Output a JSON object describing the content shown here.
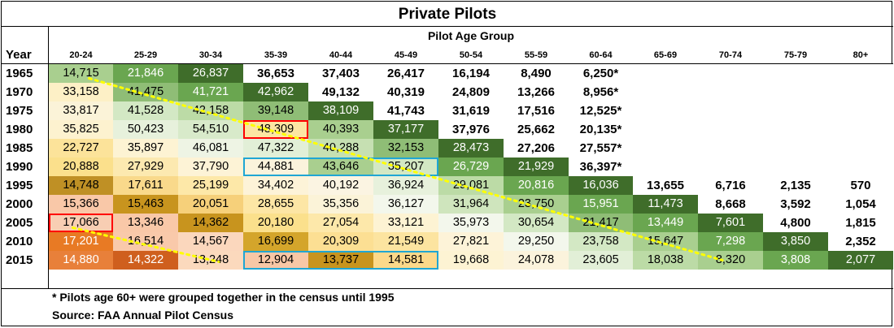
{
  "title": "Private Pilots",
  "group_label": "Pilot Age Group",
  "year_header": "Year",
  "footnotes": [
    "* Pilots age 60+ were grouped together in the census until 1995",
    "Source:  FAA Annual Pilot Census"
  ],
  "chart_data": {
    "type": "table",
    "title": "Private Pilots",
    "column_group_label": "Pilot Age Group",
    "row_header": "Year",
    "columns": [
      "20-24",
      "25-29",
      "30-34",
      "35-39",
      "40-44",
      "45-49",
      "50-54",
      "55-59",
      "60-64",
      "65-69",
      "70-74",
      "75-79",
      "80+"
    ],
    "rows": [
      {
        "year": "1965",
        "cells": [
          "14,715",
          "21,846",
          "26,837",
          "36,653",
          "37,403",
          "26,417",
          "16,194",
          "8,490",
          "6,250*",
          "",
          "",
          "",
          ""
        ],
        "fills": [
          "#a9cf8f",
          "#6aa650",
          "#3f6d2a",
          "#ffffff",
          "#ffffff",
          "#ffffff",
          "#ffffff",
          "#ffffff",
          "#ffffff",
          "#ffffff",
          "#ffffff",
          "#ffffff",
          "#ffffff"
        ]
      },
      {
        "year": "1970",
        "cells": [
          "33,158",
          "41,475",
          "41,721",
          "42,962",
          "49,132",
          "40,319",
          "24,809",
          "13,266",
          "8,956*",
          "",
          "",
          "",
          ""
        ],
        "fills": [
          "#fdf0c6",
          "#8fbd76",
          "#6aa650",
          "#3f6d2a",
          "#ffffff",
          "#ffffff",
          "#ffffff",
          "#ffffff",
          "#ffffff",
          "#ffffff",
          "#ffffff",
          "#ffffff",
          "#ffffff"
        ]
      },
      {
        "year": "1975",
        "cells": [
          "33,817",
          "41,528",
          "42,158",
          "39,148",
          "38,109",
          "41,743",
          "31,619",
          "17,516",
          "12,525*",
          "",
          "",
          "",
          ""
        ],
        "fills": [
          "#fbf3d8",
          "#d3e8c4",
          "#bcdba6",
          "#8fbd76",
          "#3f6d2a",
          "#ffffff",
          "#ffffff",
          "#ffffff",
          "#ffffff",
          "#ffffff",
          "#ffffff",
          "#ffffff",
          "#ffffff"
        ]
      },
      {
        "year": "1980",
        "cells": [
          "35,825",
          "50,423",
          "54,510",
          "48,309",
          "40,393",
          "37,177",
          "37,976",
          "25,662",
          "20,135*",
          "",
          "",
          "",
          ""
        ],
        "fills": [
          "#fdf2cf",
          "#e7f1dc",
          "#d8eaca",
          "#fce6a3",
          "#a9cf8f",
          "#3f6d2a",
          "#ffffff",
          "#ffffff",
          "#ffffff",
          "#ffffff",
          "#ffffff",
          "#ffffff",
          "#ffffff"
        ]
      },
      {
        "year": "1985",
        "cells": [
          "22,727",
          "35,897",
          "46,081",
          "47,322",
          "40,288",
          "32,153",
          "28,473",
          "27,206",
          "27,557*",
          "",
          "",
          "",
          ""
        ],
        "fills": [
          "#fce39a",
          "#fdf3d3",
          "#eef4e4",
          "#e2efd7",
          "#c6e0b2",
          "#8fbd76",
          "#3f6d2a",
          "#ffffff",
          "#ffffff",
          "#ffffff",
          "#ffffff",
          "#ffffff",
          "#ffffff"
        ]
      },
      {
        "year": "1990",
        "cells": [
          "20,888",
          "27,929",
          "37,790",
          "44,881",
          "43,646",
          "35,207",
          "26,729",
          "21,929",
          "36,397*",
          "",
          "",
          "",
          ""
        ],
        "fills": [
          "#fbe08c",
          "#fce9b0",
          "#fdf3d6",
          "#fbf3dc",
          "#a9cf8f",
          "#d3e8c4",
          "#6aa650",
          "#3f6d2a",
          "#ffffff",
          "#ffffff",
          "#ffffff",
          "#ffffff",
          "#ffffff"
        ]
      },
      {
        "year": "1995",
        "cells": [
          "14,748",
          "17,611",
          "25,199",
          "34,402",
          "40,192",
          "36,924",
          "29,081",
          "20,816",
          "16,036",
          "13,655",
          "6,716",
          "2,135",
          "570"
        ],
        "fills": [
          "#bf9025",
          "#f9d98b",
          "#fde8a8",
          "#fdf3d8",
          "#fbf4e2",
          "#e7f1dc",
          "#bcdba6",
          "#6aa650",
          "#3f6d2a",
          "#ffffff",
          "#ffffff",
          "#ffffff",
          "#ffffff"
        ]
      },
      {
        "year": "2000",
        "cells": [
          "15,366",
          "15,463",
          "20,051",
          "28,655",
          "35,356",
          "36,127",
          "31,964",
          "23,750",
          "15,951",
          "11,473",
          "8,668",
          "3,592",
          "1,054"
        ],
        "fills": [
          "#f9c8a8",
          "#c8941e",
          "#f6d07a",
          "#fde6a5",
          "#fbf3d8",
          "#f3f7ec",
          "#cfe5bd",
          "#a9cf8f",
          "#6aa650",
          "#3f6d2a",
          "#ffffff",
          "#ffffff",
          "#ffffff"
        ]
      },
      {
        "year": "2005",
        "cells": [
          "17,066",
          "13,346",
          "14,362",
          "20,180",
          "27,054",
          "33,121",
          "35,973",
          "30,654",
          "21,417",
          "13,449",
          "7,601",
          "4,800",
          "1,815"
        ],
        "fills": [
          "#f8ceb3",
          "#f9c8a8",
          "#c8941e",
          "#fbe08c",
          "#fde8aa",
          "#fdf3d3",
          "#f3f7ec",
          "#d3e8c4",
          "#8fbd76",
          "#6aa650",
          "#3f6d2a",
          "#ffffff",
          "#ffffff"
        ]
      },
      {
        "year": "2010",
        "cells": [
          "17,201",
          "16,514",
          "14,567",
          "16,699",
          "20,309",
          "21,549",
          "27,821",
          "29,250",
          "23,758",
          "15,647",
          "7,298",
          "3,850",
          "2,352"
        ],
        "fills": [
          "#e87a24",
          "#f9c9aa",
          "#fbd7bd",
          "#d4a52b",
          "#fcdf93",
          "#fce4a0",
          "#fdf3d8",
          "#f3f7ec",
          "#d3e8c4",
          "#a9cf8f",
          "#6aa650",
          "#3f6d2a",
          "#ffffff"
        ]
      },
      {
        "year": "2015",
        "cells": [
          "14,880",
          "14,322",
          "13,248",
          "12,904",
          "13,737",
          "14,581",
          "19,668",
          "24,078",
          "23,605",
          "18,038",
          "8,320",
          "3,808",
          "2,077"
        ],
        "fills": [
          "#e8803a",
          "#cf5f1e",
          "#fbd9bd",
          "#f8c7a6",
          "#c8941e",
          "#fcd98a",
          "#fdf3d3",
          "#fbf3dc",
          "#e2efd7",
          "#bcdba6",
          "#a9cf8f",
          "#6aa650",
          "#3f6d2a"
        ]
      }
    ],
    "highlights": [
      {
        "color": "#ff0000",
        "row": "1980",
        "columns": [
          "35-39"
        ]
      },
      {
        "color": "#ff0000",
        "row": "2005",
        "columns": [
          "20-24"
        ]
      },
      {
        "color": "#1fa6d4",
        "row": "1990",
        "columns": [
          "35-39",
          "40-44",
          "45-49"
        ]
      },
      {
        "color": "#1fa6d4",
        "row": "2015",
        "columns": [
          "35-39",
          "40-44",
          "45-49"
        ]
      }
    ],
    "cohort_lines_color": "#ffff00"
  }
}
